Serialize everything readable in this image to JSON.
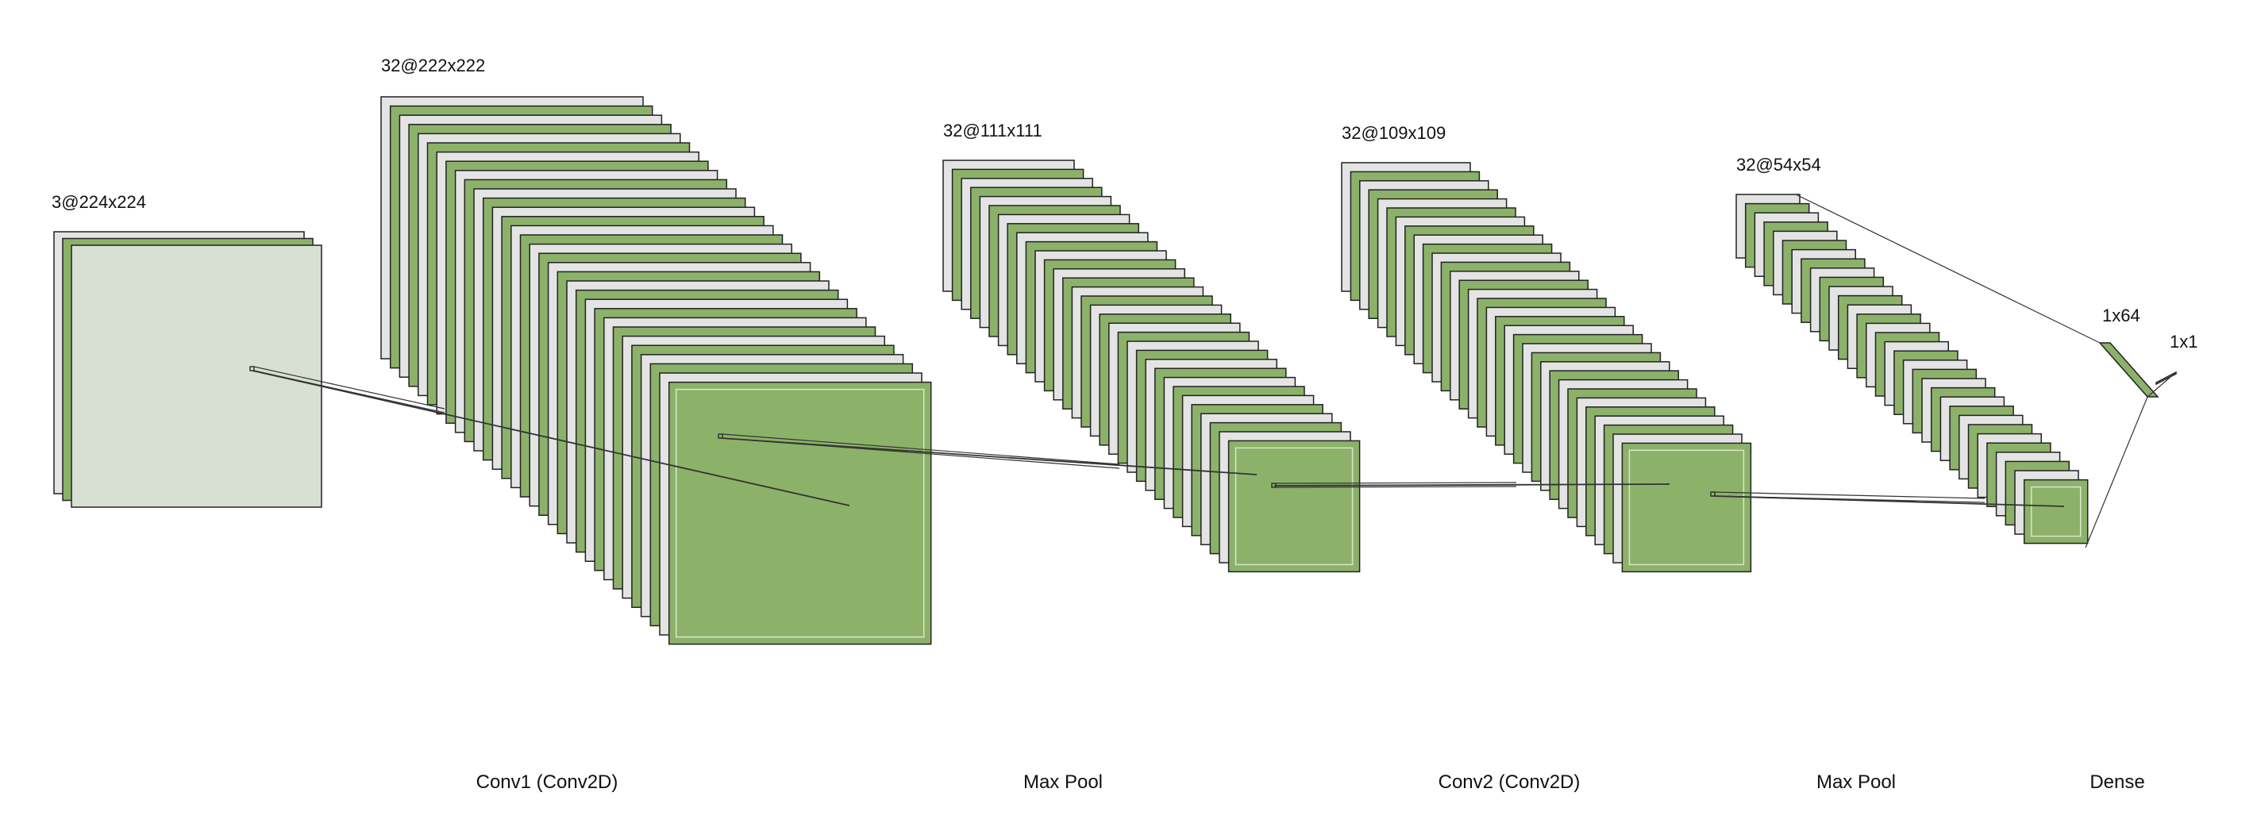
{
  "colors": {
    "background": "#ffffff",
    "fill_green": "#8cb26a",
    "fill_grey": "#e4e4e4",
    "fill_input_face": "#d8dfd3",
    "stroke": "#222222",
    "inner_stroke": "#d9e6cd",
    "connector": "#333333"
  },
  "blocks": [
    {
      "id": "input",
      "dim_label": "3@224x224",
      "maps": 3
    },
    {
      "id": "conv1",
      "dim_label": "32@222x222",
      "maps": 32
    },
    {
      "id": "pool1",
      "dim_label": "32@111x111",
      "maps": 32
    },
    {
      "id": "conv2",
      "dim_label": "32@109x109",
      "maps": 32
    },
    {
      "id": "pool2",
      "dim_label": "32@54x54",
      "maps": 32
    },
    {
      "id": "dense1",
      "dim_label": "1x64"
    },
    {
      "id": "dense2",
      "dim_label": "1x1"
    }
  ],
  "layer_labels": [
    "Conv1 (Conv2D)",
    "Max Pool",
    "Conv2 (Conv2D)",
    "Max Pool",
    "Dense"
  ]
}
